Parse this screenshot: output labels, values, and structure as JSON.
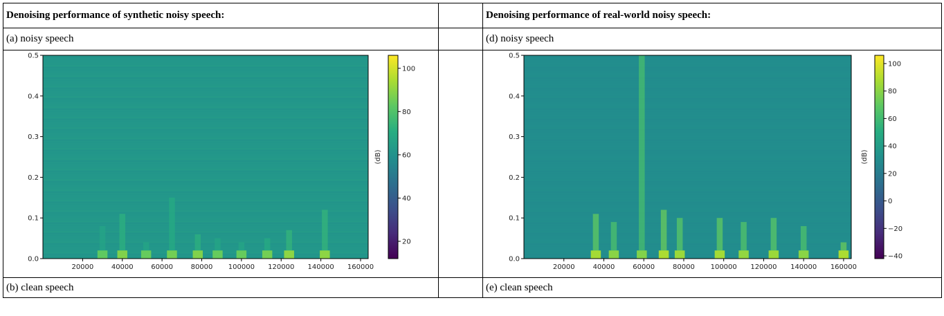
{
  "header": {
    "left": "Denoising performance of synthetic noisy speech:",
    "right": "Denoising performance of real-world noisy speech:"
  },
  "labels": {
    "a": "(a) noisy speech",
    "d": "(d) noisy speech",
    "b": "(b) clean speech",
    "e": "(e) clean speech"
  },
  "chart_data": [
    {
      "type": "heatmap",
      "title": "",
      "xlabel": "",
      "ylabel": "",
      "xlim": [
        0,
        163840
      ],
      "ylim": [
        0,
        0.5
      ],
      "x_ticks": [
        20000,
        40000,
        60000,
        80000,
        100000,
        120000,
        140000,
        160000
      ],
      "y_ticks": [
        0.0,
        0.1,
        0.2,
        0.3,
        0.4,
        0.5
      ],
      "colorbar": {
        "label": "(dB)",
        "range": [
          12,
          106
        ],
        "ticks": [
          20,
          40,
          60,
          80,
          100
        ],
        "colormap": "viridis"
      },
      "background_db": 62,
      "low_band_energy": [
        {
          "x": 30000,
          "f_max": 0.08,
          "db": 75
        },
        {
          "x": 40000,
          "f_max": 0.11,
          "db": 80
        },
        {
          "x": 52000,
          "f_max": 0.04,
          "db": 76
        },
        {
          "x": 65000,
          "f_max": 0.15,
          "db": 78
        },
        {
          "x": 78000,
          "f_max": 0.06,
          "db": 80
        },
        {
          "x": 88000,
          "f_max": 0.05,
          "db": 76
        },
        {
          "x": 100000,
          "f_max": 0.04,
          "db": 76
        },
        {
          "x": 113000,
          "f_max": 0.05,
          "db": 78
        },
        {
          "x": 124000,
          "f_max": 0.07,
          "db": 82
        },
        {
          "x": 142000,
          "f_max": 0.12,
          "db": 82
        }
      ]
    },
    {
      "type": "heatmap",
      "title": "",
      "xlabel": "",
      "ylabel": "",
      "xlim": [
        0,
        163840
      ],
      "ylim": [
        0,
        0.5
      ],
      "x_ticks": [
        20000,
        40000,
        60000,
        80000,
        100000,
        120000,
        140000,
        160000
      ],
      "y_ticks": [
        0.0,
        0.1,
        0.2,
        0.3,
        0.4,
        0.5
      ],
      "colorbar": {
        "label": "(dB)",
        "range": [
          -42,
          106
        ],
        "ticks": [
          -40,
          -20,
          0,
          20,
          40,
          60,
          80,
          100
        ],
        "colormap": "viridis"
      },
      "background_db": 30,
      "low_band_energy": [
        {
          "x": 36000,
          "f_max": 0.11,
          "db": 78
        },
        {
          "x": 45000,
          "f_max": 0.09,
          "db": 72
        },
        {
          "x": 59000,
          "f_max": 0.5,
          "db": 70
        },
        {
          "x": 70000,
          "f_max": 0.12,
          "db": 80
        },
        {
          "x": 78000,
          "f_max": 0.1,
          "db": 76
        },
        {
          "x": 98000,
          "f_max": 0.1,
          "db": 78
        },
        {
          "x": 110000,
          "f_max": 0.09,
          "db": 74
        },
        {
          "x": 125000,
          "f_max": 0.1,
          "db": 76
        },
        {
          "x": 140000,
          "f_max": 0.08,
          "db": 72
        },
        {
          "x": 160000,
          "f_max": 0.04,
          "db": 80
        }
      ]
    }
  ]
}
